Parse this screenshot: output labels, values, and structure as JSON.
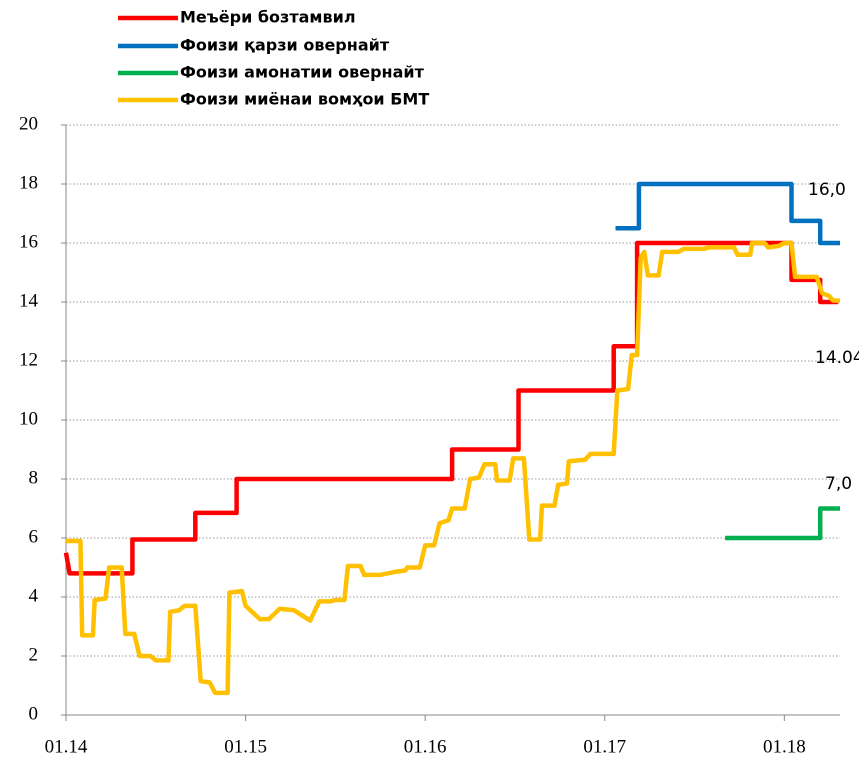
{
  "chart_data": {
    "type": "line",
    "xlim": [
      2014,
      2018.31
    ],
    "ylim": [
      0,
      20
    ],
    "xticks": [
      {
        "value": 2014,
        "label": "01.14"
      },
      {
        "value": 2015,
        "label": "01.15"
      },
      {
        "value": 2016,
        "label": "01.16"
      },
      {
        "value": 2017,
        "label": "01.17"
      },
      {
        "value": 2018,
        "label": "01.18"
      }
    ],
    "yticks": [
      0,
      2,
      4,
      6,
      8,
      10,
      12,
      14,
      16,
      18,
      20
    ],
    "grid": true,
    "legend": "top-left",
    "series": [
      {
        "name": "Меъёри бозтамвил",
        "color": "#ff0000",
        "x": [
          2014.0,
          2014.02,
          2014.37,
          2014.37,
          2014.72,
          2014.72,
          2014.95,
          2014.95,
          2016.15,
          2016.15,
          2016.52,
          2016.52,
          2017.05,
          2017.05,
          2017.18,
          2017.18,
          2018.04,
          2018.04,
          2018.2,
          2018.2,
          2018.3
        ],
        "values": [
          5.5,
          4.8,
          4.8,
          5.95,
          5.95,
          6.85,
          6.85,
          8,
          8,
          9,
          9,
          11,
          11,
          12.5,
          12.5,
          16,
          16,
          14.75,
          14.75,
          14,
          14
        ]
      },
      {
        "name": "Фоизи қарзи овернайт",
        "color": "#0070c0",
        "x": [
          2017.06,
          2017.19,
          2017.19,
          2018.04,
          2018.04,
          2018.2,
          2018.2,
          2018.31
        ],
        "values": [
          16.5,
          16.5,
          18,
          18,
          16.75,
          16.75,
          16,
          16
        ]
      },
      {
        "name": "Фоизи амонатии  овернайт",
        "color": "#00b050",
        "x": [
          2017.67,
          2018.2,
          2018.2,
          2018.31
        ],
        "values": [
          6,
          6,
          7,
          7
        ]
      },
      {
        "name": "Фоизи миёнаи вомҳои БМТ",
        "color": "#ffc000",
        "x": [
          2014.0,
          2014.08,
          2014.09,
          2014.15,
          2014.16,
          2014.22,
          2014.24,
          2014.31,
          2014.33,
          2014.38,
          2014.41,
          2014.47,
          2014.5,
          2014.57,
          2014.58,
          2014.63,
          2014.66,
          2014.72,
          2014.75,
          2014.8,
          2014.83,
          2014.9,
          2014.91,
          2014.98,
          2015.0,
          2015.08,
          2015.13,
          2015.19,
          2015.27,
          2015.36,
          2015.41,
          2015.47,
          2015.5,
          2015.55,
          2015.57,
          2015.64,
          2015.66,
          2015.75,
          2015.83,
          2015.89,
          2015.9,
          2015.97,
          2016.0,
          2016.05,
          2016.08,
          2016.13,
          2016.15,
          2016.22,
          2016.25,
          2016.3,
          2016.33,
          2016.39,
          2016.4,
          2016.47,
          2016.49,
          2016.55,
          2016.58,
          2016.64,
          2016.65,
          2016.72,
          2016.74,
          2016.79,
          2016.8,
          2016.89,
          2016.92,
          2017.05,
          2017.07,
          2017.13,
          2017.15,
          2017.18,
          2017.2,
          2017.22,
          2017.24,
          2017.3,
          2017.32,
          2017.41,
          2017.44,
          2017.55,
          2017.58,
          2017.72,
          2017.74,
          2017.81,
          2017.82,
          2017.89,
          2017.91,
          2017.97,
          2018.0,
          2018.04,
          2018.06,
          2018.18,
          2018.21,
          2018.25,
          2018.27,
          2018.31
        ],
        "values": [
          5.9,
          5.9,
          2.7,
          2.7,
          3.9,
          3.95,
          5.0,
          5.0,
          2.75,
          2.75,
          2.0,
          2.0,
          1.85,
          1.85,
          3.5,
          3.55,
          3.7,
          3.7,
          1.15,
          1.1,
          0.75,
          0.75,
          4.15,
          4.2,
          3.7,
          3.25,
          3.25,
          3.6,
          3.55,
          3.2,
          3.85,
          3.85,
          3.9,
          3.9,
          5.05,
          5.05,
          4.75,
          4.75,
          4.85,
          4.9,
          5.0,
          5.0,
          5.75,
          5.75,
          6.5,
          6.6,
          7.0,
          7.0,
          8.0,
          8.05,
          8.5,
          8.5,
          7.95,
          7.95,
          8.7,
          8.7,
          5.95,
          5.95,
          7.1,
          7.1,
          7.8,
          7.85,
          8.6,
          8.65,
          8.85,
          8.85,
          11.0,
          11.05,
          12.2,
          12.2,
          15.5,
          15.7,
          14.9,
          14.9,
          15.7,
          15.7,
          15.8,
          15.8,
          15.85,
          15.85,
          15.6,
          15.6,
          16.0,
          16.0,
          15.85,
          15.9,
          16.0,
          16.0,
          14.85,
          14.85,
          14.3,
          14.2,
          14.05,
          14.04
        ]
      }
    ],
    "annotations": [
      {
        "text": "16,0"
      },
      {
        "text": "14.04"
      },
      {
        "text": "7,0"
      }
    ]
  }
}
